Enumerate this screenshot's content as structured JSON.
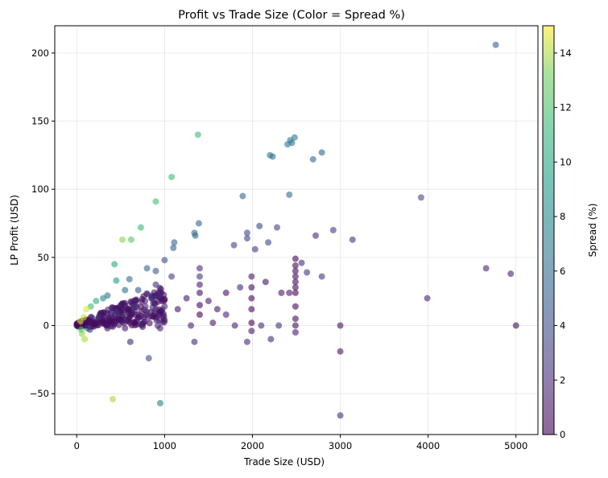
{
  "chart_data": {
    "type": "scatter",
    "title": "Profit vs Trade Size (Color = Spread %)",
    "xlabel": "Trade Size (USD)",
    "ylabel": "LP Profit (USD)",
    "xlim": [
      -250,
      5250
    ],
    "ylim": [
      -80,
      220
    ],
    "xticks": [
      0,
      1000,
      2000,
      3000,
      4000,
      5000
    ],
    "xtick_labels": [
      "0",
      "1000",
      "2000",
      "3000",
      "4000",
      "5000"
    ],
    "yticks": [
      -50,
      0,
      50,
      100,
      150,
      200
    ],
    "ytick_labels": [
      "−50",
      "0",
      "50",
      "100",
      "150",
      "200"
    ],
    "grid": true,
    "colorbar": {
      "label": "Spread (%)",
      "range": [
        0,
        15
      ],
      "ticks": [
        0,
        2,
        4,
        6,
        8,
        10,
        12,
        14
      ],
      "tick_labels": [
        "0",
        "2",
        "4",
        "6",
        "8",
        "10",
        "12",
        "14"
      ],
      "colormap": "viridis",
      "alpha": 0.6
    },
    "note": "Dense cluster of points near trade size 0-1000 and profit ~0 with spread mostly 0-2%; representative points listed below.",
    "points": [
      {
        "x": 4770,
        "y": 206,
        "c": 4.6
      },
      {
        "x": 1380,
        "y": 140,
        "c": 10.2
      },
      {
        "x": 2480,
        "y": 138,
        "c": 5.8
      },
      {
        "x": 2430,
        "y": 136,
        "c": 6.2
      },
      {
        "x": 2400,
        "y": 133,
        "c": 6.0
      },
      {
        "x": 2450,
        "y": 134,
        "c": 5.9
      },
      {
        "x": 2790,
        "y": 127,
        "c": 5.0
      },
      {
        "x": 2200,
        "y": 125,
        "c": 6.1
      },
      {
        "x": 2230,
        "y": 124,
        "c": 5.8
      },
      {
        "x": 2690,
        "y": 122,
        "c": 5.0
      },
      {
        "x": 1080,
        "y": 109,
        "c": 10.3
      },
      {
        "x": 2420,
        "y": 96,
        "c": 5.2
      },
      {
        "x": 1890,
        "y": 95,
        "c": 5.0
      },
      {
        "x": 3920,
        "y": 94,
        "c": 3.4
      },
      {
        "x": 900,
        "y": 91,
        "c": 10.4
      },
      {
        "x": 1390,
        "y": 75,
        "c": 4.8
      },
      {
        "x": 730,
        "y": 72,
        "c": 10.2
      },
      {
        "x": 2080,
        "y": 73,
        "c": 3.1
      },
      {
        "x": 2280,
        "y": 72,
        "c": 3.0
      },
      {
        "x": 2920,
        "y": 70,
        "c": 2.6
      },
      {
        "x": 1340,
        "y": 68,
        "c": 5.2
      },
      {
        "x": 1350,
        "y": 66,
        "c": 5.0
      },
      {
        "x": 2720,
        "y": 66,
        "c": 1.6
      },
      {
        "x": 3140,
        "y": 63,
        "c": 2.2
      },
      {
        "x": 520,
        "y": 63,
        "c": 12.3
      },
      {
        "x": 620,
        "y": 63,
        "c": 11.0
      },
      {
        "x": 1940,
        "y": 68,
        "c": 3.2
      },
      {
        "x": 1940,
        "y": 64,
        "c": 3.0
      },
      {
        "x": 2180,
        "y": 61,
        "c": 3.1
      },
      {
        "x": 1790,
        "y": 59,
        "c": 3.0
      },
      {
        "x": 1110,
        "y": 61,
        "c": 4.8
      },
      {
        "x": 1100,
        "y": 57,
        "c": 4.6
      },
      {
        "x": 2030,
        "y": 56,
        "c": 2.4
      },
      {
        "x": 4660,
        "y": 42,
        "c": 1.4
      },
      {
        "x": 4940,
        "y": 38,
        "c": 1.4
      },
      {
        "x": 3990,
        "y": 20,
        "c": 1.4
      },
      {
        "x": 5000,
        "y": 0,
        "c": 0.4
      },
      {
        "x": 3000,
        "y": 0,
        "c": 0.6
      },
      {
        "x": 3000,
        "y": -19,
        "c": 0.8
      },
      {
        "x": 3000,
        "y": -66,
        "c": 1.8
      },
      {
        "x": 950,
        "y": -57,
        "c": 6.6
      },
      {
        "x": 410,
        "y": -54,
        "c": 13.0
      },
      {
        "x": 820,
        "y": -24,
        "c": 3.6
      },
      {
        "x": 2210,
        "y": -10,
        "c": 1.6
      },
      {
        "x": 1340,
        "y": -12,
        "c": 1.6
      },
      {
        "x": 1940,
        "y": -12,
        "c": 1.6
      },
      {
        "x": 610,
        "y": -12,
        "c": 1.6
      },
      {
        "x": 2490,
        "y": 49,
        "c": 0.2
      },
      {
        "x": 2490,
        "y": 44,
        "c": 0.2
      },
      {
        "x": 2490,
        "y": 40,
        "c": 0.3
      },
      {
        "x": 2490,
        "y": 36,
        "c": 0.4
      },
      {
        "x": 2490,
        "y": 32,
        "c": 0.2
      },
      {
        "x": 2490,
        "y": 28,
        "c": 0.2
      },
      {
        "x": 2490,
        "y": 24,
        "c": 0.1
      },
      {
        "x": 2490,
        "y": 14,
        "c": 0.2
      },
      {
        "x": 2490,
        "y": 5,
        "c": 0.3
      },
      {
        "x": 2490,
        "y": 0,
        "c": 0.4
      },
      {
        "x": 2490,
        "y": -5,
        "c": 1.0
      },
      {
        "x": 1990,
        "y": 36,
        "c": 1.0
      },
      {
        "x": 1990,
        "y": 28,
        "c": 0.4
      },
      {
        "x": 1990,
        "y": 20,
        "c": 0.2
      },
      {
        "x": 1990,
        "y": 12,
        "c": 0.2
      },
      {
        "x": 1990,
        "y": 2,
        "c": 0.1
      },
      {
        "x": 1990,
        "y": -4,
        "c": 0.8
      },
      {
        "x": 1400,
        "y": 42,
        "c": 1.8
      },
      {
        "x": 1400,
        "y": 36,
        "c": 2.4
      },
      {
        "x": 1400,
        "y": 30,
        "c": 1.2
      },
      {
        "x": 1400,
        "y": 24,
        "c": 0.6
      },
      {
        "x": 1400,
        "y": 15,
        "c": 0.2
      },
      {
        "x": 1400,
        "y": 8,
        "c": 0.1
      },
      {
        "x": 2560,
        "y": 46,
        "c": 2.0
      },
      {
        "x": 2620,
        "y": 39,
        "c": 2.2
      },
      {
        "x": 2790,
        "y": 36,
        "c": 2.4
      },
      {
        "x": 1860,
        "y": 28,
        "c": 1.6
      },
      {
        "x": 2420,
        "y": 24,
        "c": 0.8
      },
      {
        "x": 2330,
        "y": 24,
        "c": 1.0
      },
      {
        "x": 2150,
        "y": 32,
        "c": 0.6
      },
      {
        "x": 1700,
        "y": 24,
        "c": 0.6
      },
      {
        "x": 1500,
        "y": 18,
        "c": 1.2
      },
      {
        "x": 1600,
        "y": 12,
        "c": 1.0
      },
      {
        "x": 1700,
        "y": 8,
        "c": 1.4
      },
      {
        "x": 1250,
        "y": 20,
        "c": 0.8
      },
      {
        "x": 1150,
        "y": 12,
        "c": 1.0
      },
      {
        "x": 1800,
        "y": 0,
        "c": 1.4
      },
      {
        "x": 2100,
        "y": 0,
        "c": 1.6
      },
      {
        "x": 2300,
        "y": 0,
        "c": 1.8
      },
      {
        "x": 1300,
        "y": 0,
        "c": 1.2
      },
      {
        "x": 1550,
        "y": 2,
        "c": 1.0
      },
      {
        "x": 1080,
        "y": 36,
        "c": 2.6
      },
      {
        "x": 1000,
        "y": 48,
        "c": 3.6
      },
      {
        "x": 900,
        "y": 30,
        "c": 2.0
      },
      {
        "x": 900,
        "y": 40,
        "c": 4.2
      },
      {
        "x": 800,
        "y": 42,
        "c": 5.0
      },
      {
        "x": 700,
        "y": 26,
        "c": 4.2
      },
      {
        "x": 600,
        "y": 34,
        "c": 5.2
      },
      {
        "x": 550,
        "y": 26,
        "c": 5.6
      },
      {
        "x": 450,
        "y": 33,
        "c": 8.0
      },
      {
        "x": 430,
        "y": 45,
        "c": 9.0
      },
      {
        "x": 350,
        "y": 22,
        "c": 6.0
      },
      {
        "x": 300,
        "y": 20,
        "c": 7.2
      },
      {
        "x": 220,
        "y": 18,
        "c": 9.4
      },
      {
        "x": 160,
        "y": 14,
        "c": 10.2
      },
      {
        "x": 110,
        "y": 12,
        "c": 14.4
      },
      {
        "x": 80,
        "y": 6,
        "c": 13.6
      },
      {
        "x": 40,
        "y": 3,
        "c": 14.2
      },
      {
        "x": 60,
        "y": -6,
        "c": 12.4
      },
      {
        "x": 90,
        "y": -10,
        "c": 13.0
      },
      {
        "x": 50,
        "y": -3,
        "c": 11.0
      },
      {
        "x": 120,
        "y": -2,
        "c": 7.0
      },
      {
        "x": 0,
        "y": 0,
        "c": 0.1
      },
      {
        "x": 100,
        "y": 0,
        "c": 0.1
      },
      {
        "x": 200,
        "y": 1,
        "c": 0.2
      },
      {
        "x": 300,
        "y": 2,
        "c": 0.3
      },
      {
        "x": 400,
        "y": 3,
        "c": 0.4
      },
      {
        "x": 500,
        "y": 4,
        "c": 0.5
      },
      {
        "x": 600,
        "y": 6,
        "c": 0.6
      },
      {
        "x": 700,
        "y": 8,
        "c": 0.8
      },
      {
        "x": 800,
        "y": 10,
        "c": 1.0
      },
      {
        "x": 900,
        "y": 12,
        "c": 1.2
      },
      {
        "x": 1000,
        "y": 14,
        "c": 1.4
      },
      {
        "x": 250,
        "y": 6,
        "c": 2.0
      },
      {
        "x": 450,
        "y": 10,
        "c": 2.4
      },
      {
        "x": 650,
        "y": 14,
        "c": 2.8
      },
      {
        "x": 850,
        "y": 20,
        "c": 2.2
      },
      {
        "x": 950,
        "y": 24,
        "c": 1.8
      },
      {
        "x": 350,
        "y": -2,
        "c": 0.8
      },
      {
        "x": 550,
        "y": -2,
        "c": 1.0
      },
      {
        "x": 750,
        "y": -1,
        "c": 1.2
      },
      {
        "x": 950,
        "y": -2,
        "c": 1.4
      },
      {
        "x": 150,
        "y": -3,
        "c": 1.6
      },
      {
        "x": 900,
        "y": 6,
        "c": 0.3
      },
      {
        "x": 950,
        "y": 10,
        "c": 0.2
      },
      {
        "x": 1000,
        "y": 4,
        "c": 0.3
      }
    ]
  }
}
